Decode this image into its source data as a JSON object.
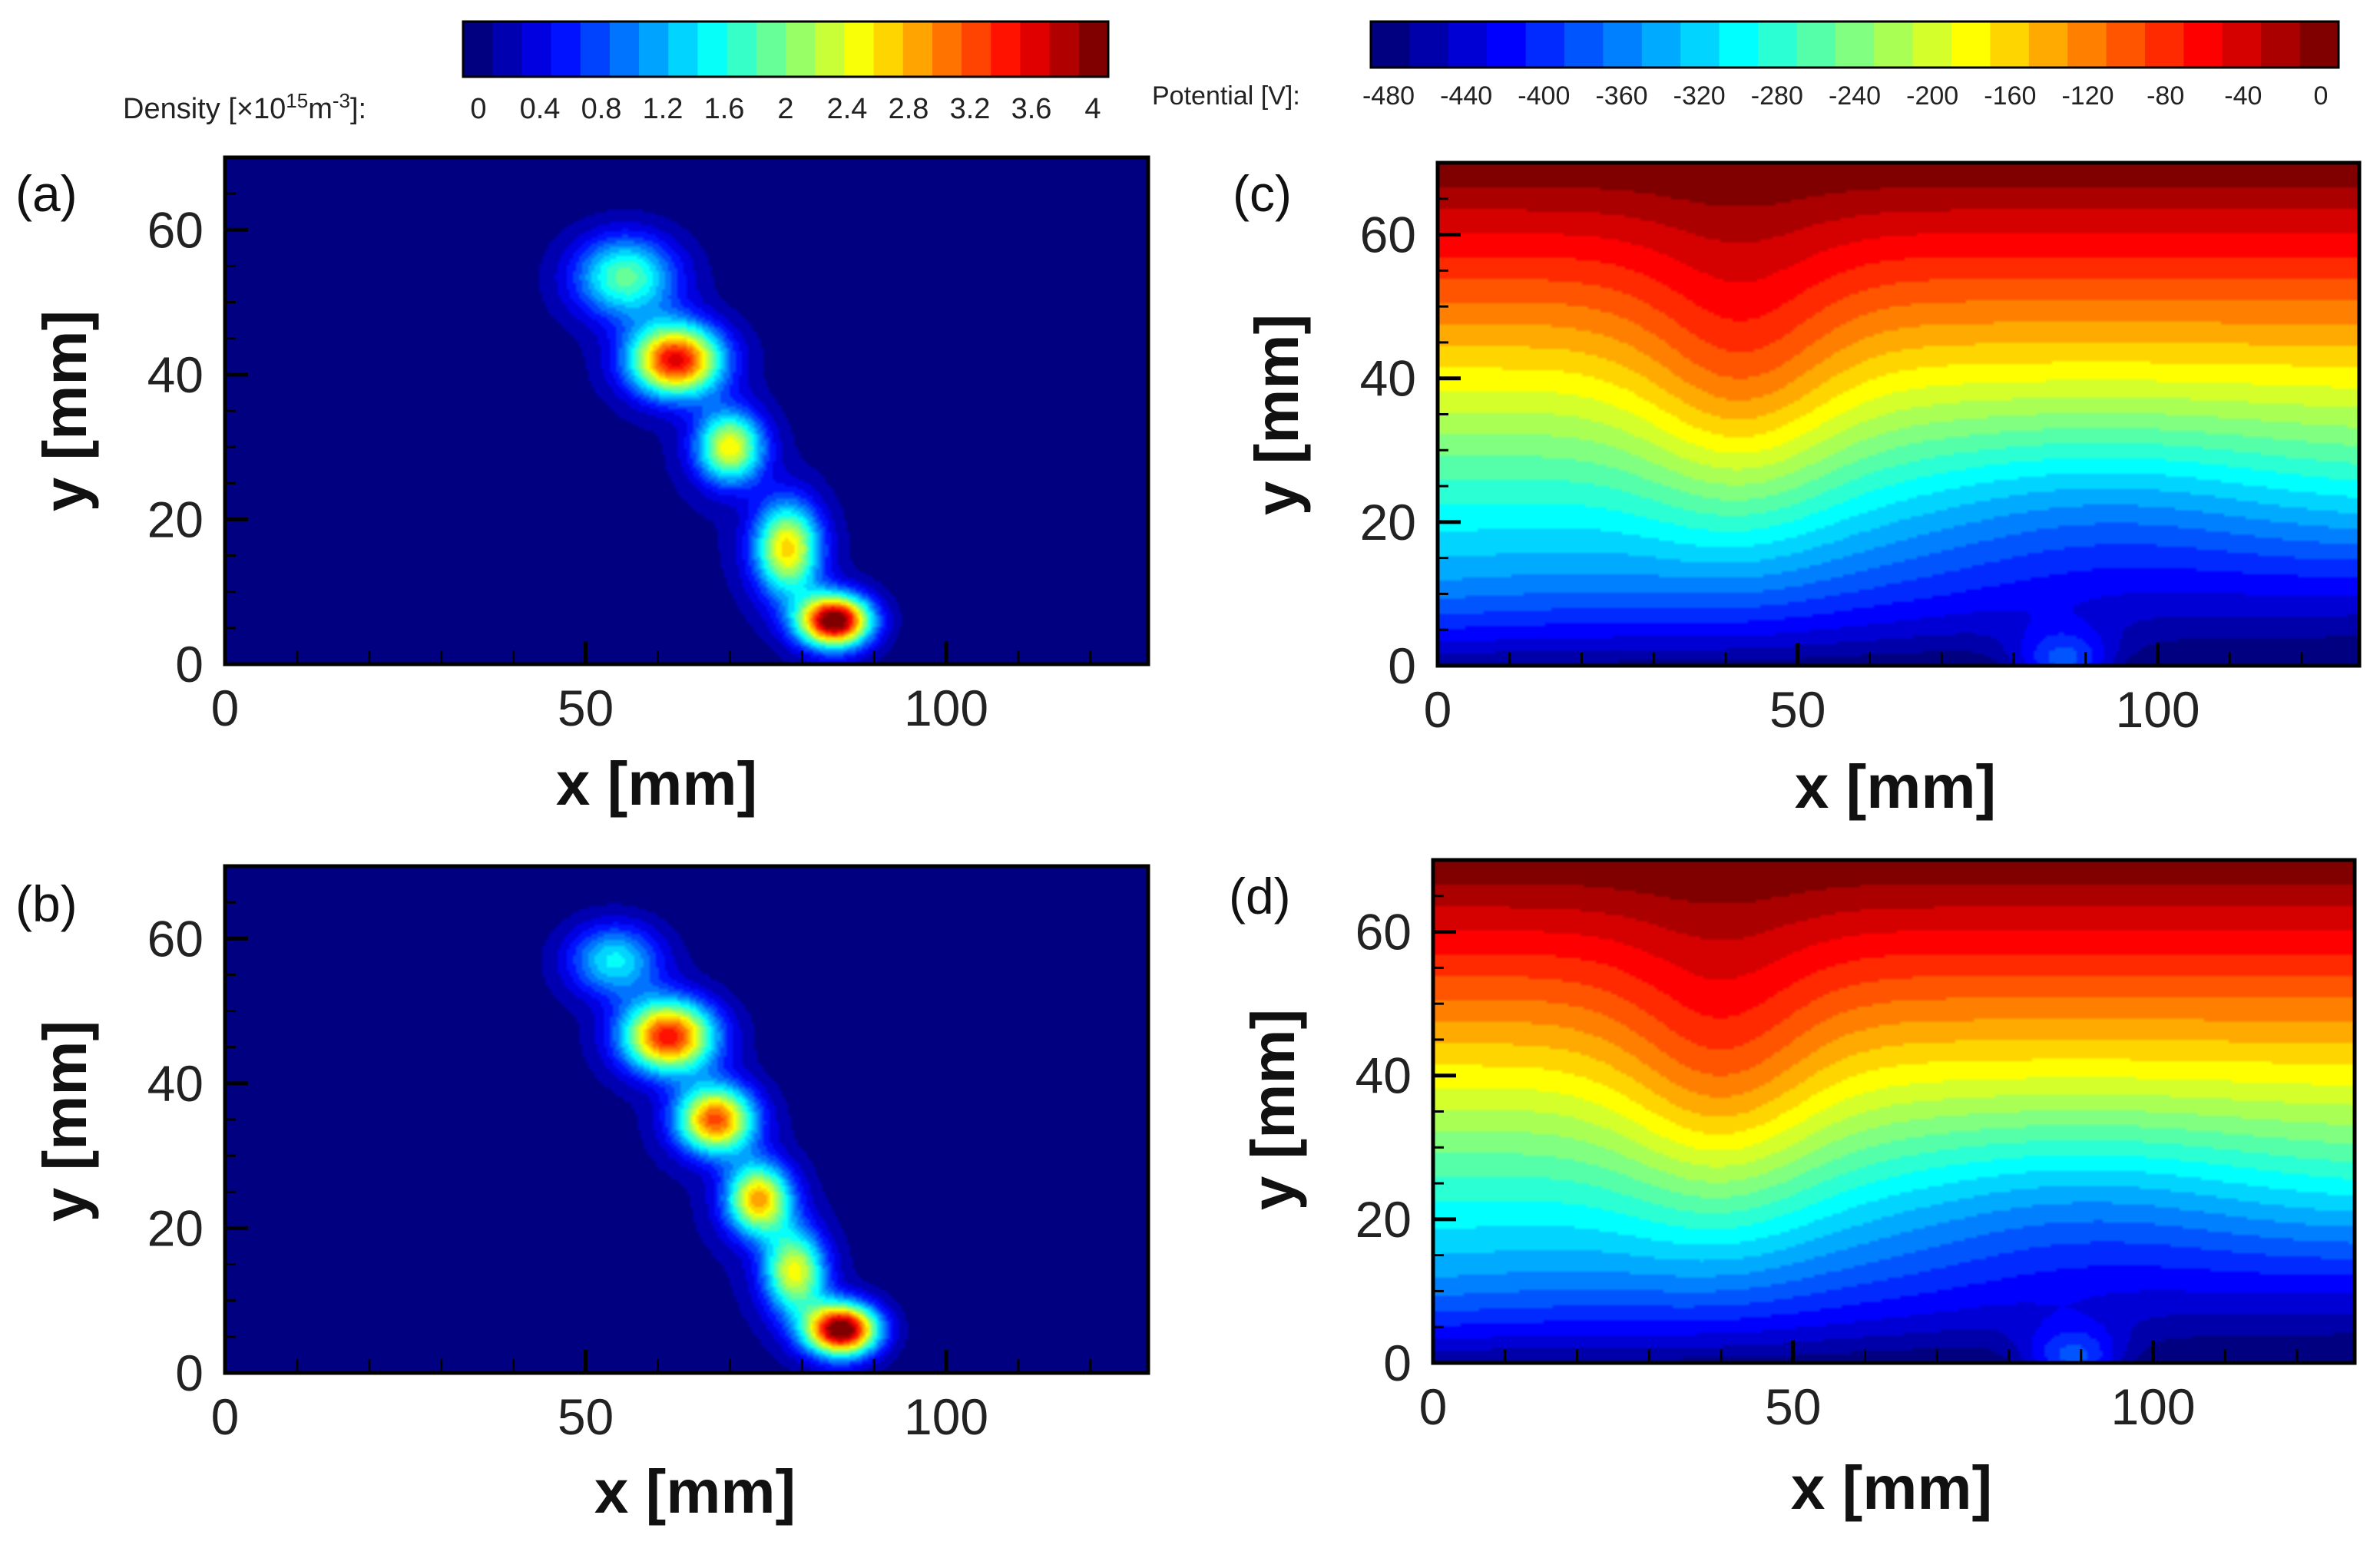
{
  "chart_data": {
    "type": "heatmap",
    "colorbars": [
      {
        "id": "density",
        "label_main": "Density [",
        "label_times": "×10",
        "label_exp1": "15",
        "label_unit": "m",
        "label_exp2": "-3",
        "label_end": "]:",
        "ticks": [
          "0",
          "0.4",
          "0.8",
          "1.2",
          "1.6",
          "2",
          "2.4",
          "2.8",
          "3.2",
          "3.6",
          "4"
        ],
        "range": [
          0,
          4.2
        ],
        "levels": 22
      },
      {
        "id": "potential",
        "label": "Potential [V]:",
        "ticks": [
          "-480",
          "-440",
          "-400",
          "-360",
          "-320",
          "-280",
          "-240",
          "-200",
          "-160",
          "-120",
          "-80",
          "-40",
          "0"
        ],
        "range": [
          -500,
          0
        ],
        "levels": 25
      }
    ],
    "panels": [
      {
        "letter": "(a)",
        "quantity": "density",
        "xlabel": "x [mm]",
        "ylabel": "y [mm]",
        "xlim": [
          0,
          128
        ],
        "ylim": [
          0,
          70
        ],
        "xticks": [
          "0",
          "50",
          "100"
        ],
        "yticks": [
          "0",
          "20",
          "40",
          "60"
        ],
        "blobs": [
          {
            "x": 84.5,
            "y": 6,
            "sx": 3.5,
            "sy": 2.5,
            "amp": 4.2
          },
          {
            "x": 78,
            "y": 16,
            "sx": 3.2,
            "sy": 4.5,
            "amp": 2.6
          },
          {
            "x": 70,
            "y": 30,
            "sx": 3.3,
            "sy": 3.5,
            "amp": 2.5
          },
          {
            "x": 62.5,
            "y": 42,
            "sx": 4.5,
            "sy": 3.5,
            "amp": 3.6
          },
          {
            "x": 55.5,
            "y": 53.5,
            "sx": 5,
            "sy": 4,
            "amp": 1.9
          }
        ]
      },
      {
        "letter": "(b)",
        "quantity": "density",
        "xlabel": "x [mm]",
        "ylabel": "y [mm]",
        "xlim": [
          0,
          128
        ],
        "ylim": [
          0,
          70
        ],
        "xticks": [
          "0",
          "50",
          "100"
        ],
        "yticks": [
          "0",
          "20",
          "40",
          "60"
        ],
        "blobs": [
          {
            "x": 85.5,
            "y": 6,
            "sx": 3.5,
            "sy": 2.5,
            "amp": 4.2
          },
          {
            "x": 79,
            "y": 14,
            "sx": 3,
            "sy": 4,
            "amp": 2.4
          },
          {
            "x": 74,
            "y": 24,
            "sx": 3.2,
            "sy": 3.5,
            "amp": 2.8
          },
          {
            "x": 68,
            "y": 35,
            "sx": 3.8,
            "sy": 3.3,
            "amp": 3.2
          },
          {
            "x": 61.5,
            "y": 46.5,
            "sx": 4.5,
            "sy": 3.5,
            "amp": 3.5
          },
          {
            "x": 54,
            "y": 57,
            "sx": 4.5,
            "sy": 3.5,
            "amp": 1.5
          }
        ]
      },
      {
        "letter": "(c)",
        "quantity": "potential",
        "xlabel": "x [mm]",
        "ylabel": "y [mm]",
        "xlim": [
          0,
          128
        ],
        "ylim": [
          0,
          70
        ],
        "xticks": [
          "0",
          "50",
          "100"
        ],
        "yticks": [
          "0",
          "20",
          "40",
          "60"
        ],
        "dip_x": 42,
        "cathode_x": 87
      },
      {
        "letter": "(d)",
        "quantity": "potential",
        "xlabel": "x [mm]",
        "ylabel": "y [mm]",
        "xlim": [
          0,
          128
        ],
        "ylim": [
          0,
          70
        ],
        "xticks": [
          "0",
          "50",
          "100"
        ],
        "yticks": [
          "0",
          "20",
          "40",
          "60"
        ],
        "dip_x": 40,
        "cathode_x": 89
      }
    ]
  }
}
